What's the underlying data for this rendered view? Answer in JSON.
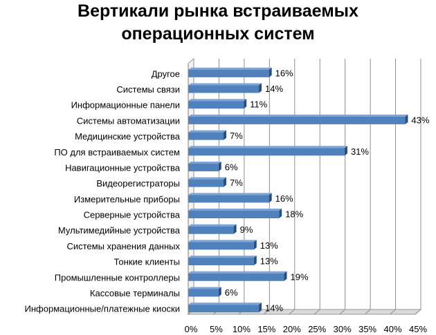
{
  "chart_data": {
    "type": "bar",
    "orientation": "horizontal",
    "title_lines": [
      "Вертикали рынка встраиваемых",
      "операционных систем"
    ],
    "categories": [
      "Другое",
      "Системы связи",
      "Информационные панели",
      "Системы автоматизации",
      "Медицинские устройства",
      "ПО для встраиваемых систем",
      "Навигационные устройства",
      "Видеорегистраторы",
      "Измерительные приборы",
      "Серверные устройства",
      "Мультимедийные устройства",
      "Системы хранения данных",
      "Тонкие клиенты",
      "Промышленные контроллеры",
      "Кассовые терминалы",
      "Информационные/платежные киоски"
    ],
    "values": [
      16,
      14,
      11,
      43,
      7,
      31,
      6,
      7,
      16,
      18,
      9,
      13,
      13,
      19,
      6,
      14
    ],
    "value_labels": [
      "16%",
      "14%",
      "11%",
      "43%",
      "7%",
      "31%",
      "6%",
      "7%",
      "16%",
      "18%",
      "9%",
      "13%",
      "13%",
      "19%",
      "6%",
      "14%"
    ],
    "xlim": [
      0,
      45
    ],
    "x_ticks": [
      0,
      5,
      10,
      15,
      20,
      25,
      30,
      35,
      40,
      45
    ],
    "x_tick_labels": [
      "0%",
      "5%",
      "10%",
      "15%",
      "20%",
      "25%",
      "30%",
      "35%",
      "40%",
      "45%"
    ],
    "grid": true,
    "legend": "none",
    "colors": {
      "bar": "#4F81BD",
      "bar_dark": "#2C4D75",
      "bar_top": "#7EA4D6",
      "grid": "#888888",
      "wall": "#C8C8C8"
    }
  }
}
